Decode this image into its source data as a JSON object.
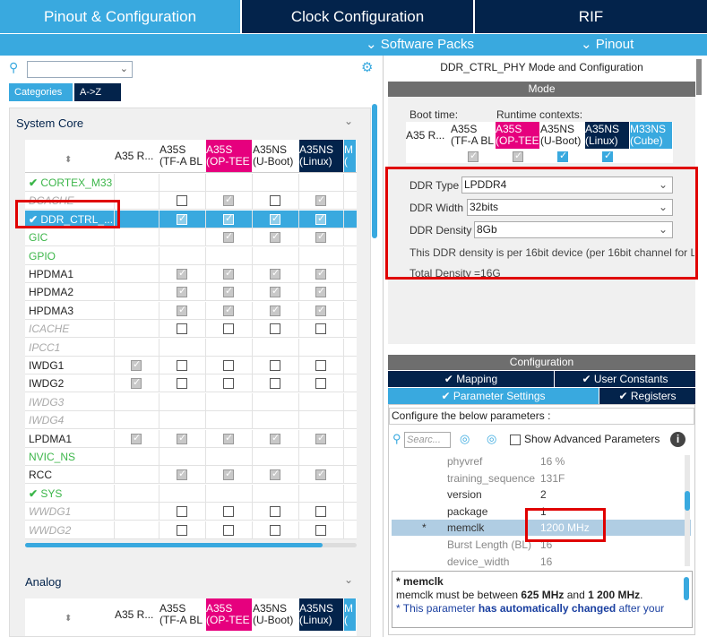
{
  "top_tabs": {
    "pinout": "Pinout & Configuration",
    "clock": "Clock Configuration",
    "rif": "RIF"
  },
  "sub_bar": {
    "software_packs": "Software Packs",
    "pinout": "Pinout"
  },
  "left": {
    "categories_tab": "Categories",
    "az_tab": "A->Z",
    "system_core": "System Core",
    "analog": "Analog",
    "columns": [
      {
        "line1": "A35 R...",
        "line2": ""
      },
      {
        "line1": "A35S",
        "line2": "(TF-A BL"
      },
      {
        "line1": "A35S",
        "line2": "(OP-TEE"
      },
      {
        "line1": "A35NS",
        "line2": "(U-Boot)"
      },
      {
        "line1": "A35NS",
        "line2": "(Linux)"
      },
      {
        "line1": "M",
        "line2": "("
      }
    ],
    "rows": [
      {
        "name": "CORTEX_M33",
        "style": "green",
        "check": true,
        "cb": [
          null,
          null,
          null,
          null,
          null
        ]
      },
      {
        "name": "DCACHE",
        "style": "gray",
        "check": false,
        "cb": [
          null,
          0,
          1,
          0,
          1
        ]
      },
      {
        "name": "DDR_CTRL_...",
        "style": "sel",
        "check": true,
        "cb": [
          null,
          1,
          1,
          1,
          1
        ]
      },
      {
        "name": "GIC",
        "style": "green",
        "check": false,
        "cb": [
          null,
          null,
          1,
          1,
          1
        ]
      },
      {
        "name": "GPIO",
        "style": "green",
        "check": false,
        "cb": [
          null,
          null,
          null,
          null,
          null
        ]
      },
      {
        "name": "HPDMA1",
        "style": "normal",
        "check": false,
        "cb": [
          null,
          1,
          1,
          1,
          1
        ]
      },
      {
        "name": "HPDMA2",
        "style": "normal",
        "check": false,
        "cb": [
          null,
          1,
          1,
          1,
          1
        ]
      },
      {
        "name": "HPDMA3",
        "style": "normal",
        "check": false,
        "cb": [
          null,
          1,
          1,
          1,
          1
        ]
      },
      {
        "name": "ICACHE",
        "style": "gray",
        "check": false,
        "cb": [
          null,
          0,
          0,
          0,
          0
        ]
      },
      {
        "name": "IPCC1",
        "style": "gray",
        "check": false,
        "cb": [
          null,
          null,
          null,
          null,
          null
        ]
      },
      {
        "name": "IWDG1",
        "style": "normal",
        "check": false,
        "cb": [
          1,
          0,
          0,
          0,
          0
        ]
      },
      {
        "name": "IWDG2",
        "style": "normal",
        "check": false,
        "cb": [
          1,
          0,
          0,
          0,
          0
        ]
      },
      {
        "name": "IWDG3",
        "style": "gray",
        "check": false,
        "cb": [
          null,
          null,
          null,
          null,
          null
        ]
      },
      {
        "name": "IWDG4",
        "style": "gray",
        "check": false,
        "cb": [
          null,
          null,
          null,
          null,
          null
        ]
      },
      {
        "name": "LPDMA1",
        "style": "normal",
        "check": false,
        "cb": [
          1,
          1,
          1,
          1,
          1
        ]
      },
      {
        "name": "NVIC_NS",
        "style": "green",
        "check": false,
        "cb": [
          null,
          null,
          null,
          null,
          null
        ]
      },
      {
        "name": "RCC",
        "style": "normal",
        "check": false,
        "cb": [
          null,
          1,
          1,
          1,
          1
        ]
      },
      {
        "name": "SYS",
        "style": "green",
        "check": true,
        "cb": [
          null,
          null,
          null,
          null,
          null
        ]
      },
      {
        "name": "WWDG1",
        "style": "gray",
        "check": false,
        "cb": [
          null,
          0,
          0,
          0,
          0
        ]
      },
      {
        "name": "WWDG2",
        "style": "gray",
        "check": false,
        "cb": [
          null,
          0,
          0,
          0,
          0
        ]
      }
    ]
  },
  "right": {
    "title": "DDR_CTRL_PHY Mode and Configuration",
    "mode": "Mode",
    "boot_time": "Boot time:",
    "runtime_contexts": "Runtime contexts:",
    "mode_cols": [
      {
        "line1": "A35 R...",
        "line2": ""
      },
      {
        "line1": "A35S",
        "line2": "(TF-A BL"
      },
      {
        "line1": "A35S",
        "line2": "(OP-TEE"
      },
      {
        "line1": "A35NS",
        "line2": "(U-Boot)"
      },
      {
        "line1": "A35NS",
        "line2": "(Linux)"
      },
      {
        "line1": "M33NS",
        "line2": "(Cube)"
      }
    ],
    "ddr_type_label": "DDR Type",
    "ddr_type": "LPDDR4",
    "ddr_width_label": "DDR Width",
    "ddr_width": "32bits",
    "ddr_density_label": "DDR Density",
    "ddr_density": "8Gb",
    "density_note": "This DDR density is per 16bit device (per 16bit channel for L",
    "total_density": "Total Density =16G",
    "configuration": "Configuration",
    "tab_mapping": "Mapping",
    "tab_user_constants": "User Constants",
    "tab_parameter_settings": "Parameter Settings",
    "tab_registers": "Registers",
    "configure_prompt": "Configure the below parameters :",
    "search_placeholder": "Searc...",
    "show_advanced": "Show Advanced Parameters",
    "params": [
      {
        "name": "phyvref",
        "value": "16 %",
        "active": false,
        "star": ""
      },
      {
        "name": "training_sequence",
        "value": "131F",
        "active": false,
        "star": ""
      },
      {
        "name": "version",
        "value": "2",
        "active": true,
        "star": ""
      },
      {
        "name": "package",
        "value": "1",
        "active": true,
        "star": ""
      },
      {
        "name": "memclk",
        "value": "1200 MHz",
        "active": true,
        "star": "*",
        "highlight": true
      },
      {
        "name": "Burst Length (BL)",
        "value": "16",
        "active": false,
        "star": ""
      },
      {
        "name": "device_width",
        "value": "16",
        "active": false,
        "star": ""
      }
    ],
    "desc_title": "* memclk",
    "desc_line1_a": "memclk must be between ",
    "desc_line1_b": "625 MHz",
    "desc_line1_c": " and ",
    "desc_line1_d": "1 200 MHz",
    "desc_line1_e": ".",
    "desc_line2_a": "* This parameter ",
    "desc_line2_b": "has automatically changed",
    "desc_line2_c": " after your"
  }
}
